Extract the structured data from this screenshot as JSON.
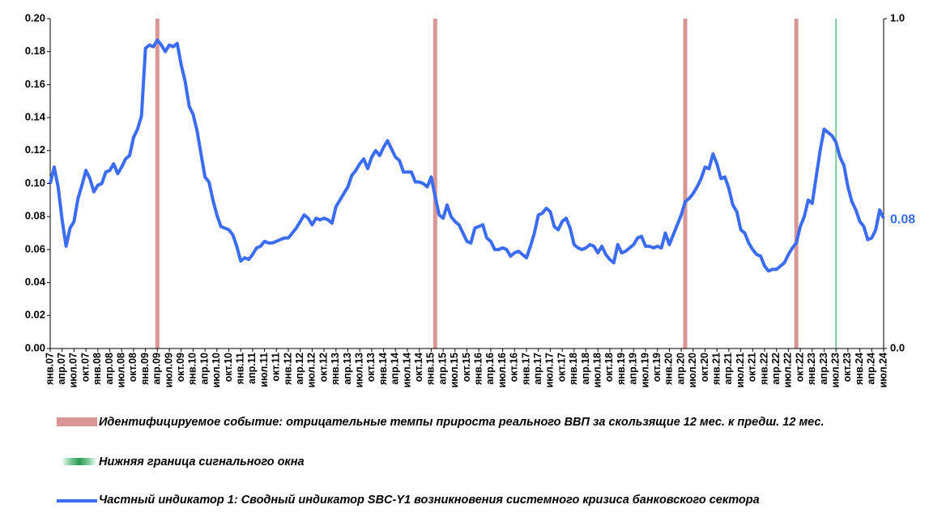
{
  "chart_data": {
    "type": "line",
    "categories": [
      "янв.07",
      null,
      null,
      "апр.07",
      null,
      null,
      "июл.07",
      null,
      null,
      "окт.07",
      null,
      null,
      "янв.08",
      null,
      null,
      "апр.08",
      null,
      null,
      "июл.08",
      null,
      null,
      "окт.08",
      null,
      null,
      "янв.09",
      null,
      null,
      "апр.09",
      null,
      null,
      "июл.09",
      null,
      null,
      "окт.09",
      null,
      null,
      "янв.10",
      null,
      null,
      "апр.10",
      null,
      null,
      "июл.10",
      null,
      null,
      "окт.10",
      null,
      null,
      "янв.11",
      null,
      null,
      "апр.11",
      null,
      null,
      "июл.11",
      null,
      null,
      "окт.11",
      null,
      null,
      "янв.12",
      null,
      null,
      "апр.12",
      null,
      null,
      "июл.12",
      null,
      null,
      "окт.12",
      null,
      null,
      "янв.13",
      null,
      null,
      "апр.13",
      null,
      null,
      "июл.13",
      null,
      null,
      "окт.13",
      null,
      null,
      "янв.14",
      null,
      null,
      "апр.14",
      null,
      null,
      "июл.14",
      null,
      null,
      "окт.14",
      null,
      null,
      "янв.15",
      null,
      null,
      "апр.15",
      null,
      null,
      "июл.15",
      null,
      null,
      "окт.15",
      null,
      null,
      "янв.16",
      null,
      null,
      "апр.16",
      null,
      null,
      "июл.16",
      null,
      null,
      "окт.16",
      null,
      null,
      "янв.17",
      null,
      null,
      "апр.17",
      null,
      null,
      "июл.17",
      null,
      null,
      "окт.17",
      null,
      null,
      "янв.18",
      null,
      null,
      "апр.18",
      null,
      null,
      "июл.18",
      null,
      null,
      "окт.18",
      null,
      null,
      "янв.19",
      null,
      null,
      "апр.19",
      null,
      null,
      "июл.19",
      null,
      null,
      "окт.19",
      null,
      null,
      "янв.20",
      null,
      null,
      "апр.20",
      null,
      null,
      "июл.20",
      null,
      null,
      "окт.20",
      null,
      null,
      "янв.21",
      null,
      null,
      "апр.21",
      null,
      null,
      "июл.21",
      null,
      null,
      "окт.21",
      null,
      null,
      "янв.22",
      null,
      null,
      "апр.22",
      null,
      null,
      "июл.22",
      null,
      null,
      "окт.22",
      null,
      null,
      "янв.23",
      null,
      null,
      "апр.23",
      null,
      null,
      "июл.23",
      null,
      null,
      "окт.23",
      null,
      null,
      "янв.24",
      null,
      null,
      "апр.24",
      null,
      null,
      "июл.24"
    ],
    "series": [
      {
        "name": "Идентифицируемое событие: отрицательные темпы прироста реального ВВП за скользящие 12 мес. к предш. 12 мес.",
        "color": "#d99694",
        "kind": "bar",
        "axis": "y2",
        "values": [
          null,
          null,
          null,
          null,
          null,
          null,
          null,
          null,
          null,
          null,
          null,
          null,
          null,
          null,
          null,
          null,
          null,
          null,
          null,
          null,
          null,
          null,
          null,
          null,
          null,
          null,
          null,
          1,
          null,
          null,
          null,
          null,
          null,
          null,
          null,
          null,
          null,
          null,
          null,
          null,
          null,
          null,
          null,
          null,
          null,
          null,
          null,
          null,
          null,
          null,
          null,
          null,
          null,
          null,
          null,
          null,
          null,
          null,
          null,
          null,
          null,
          null,
          null,
          null,
          null,
          null,
          null,
          null,
          null,
          null,
          null,
          null,
          null,
          null,
          null,
          null,
          null,
          null,
          null,
          null,
          null,
          null,
          null,
          null,
          null,
          null,
          null,
          null,
          null,
          null,
          null,
          null,
          null,
          null,
          null,
          null,
          null,
          1,
          null,
          null,
          null,
          null,
          null,
          null,
          null,
          null,
          null,
          null,
          null,
          null,
          null,
          null,
          null,
          null,
          null,
          null,
          null,
          null,
          null,
          null,
          null,
          null,
          null,
          null,
          null,
          null,
          null,
          null,
          null,
          null,
          null,
          null,
          null,
          null,
          null,
          null,
          null,
          null,
          null,
          null,
          null,
          null,
          null,
          null,
          null,
          null,
          null,
          null,
          null,
          null,
          null,
          null,
          null,
          null,
          null,
          null,
          null,
          null,
          null,
          null,
          1,
          null,
          null,
          null,
          null,
          null,
          null,
          null,
          null,
          null,
          null,
          null,
          null,
          null,
          null,
          null,
          null,
          null,
          null,
          null,
          null,
          null,
          null,
          null,
          null,
          null,
          null,
          null,
          1,
          null,
          null,
          null,
          null,
          null,
          null,
          null,
          null,
          null,
          null,
          null,
          null,
          null,
          null,
          null,
          null,
          null,
          null,
          null,
          null,
          null,
          null
        ]
      },
      {
        "name": "Нижняя граница сигнального окна",
        "color": "#7ec99a",
        "kind": "bar",
        "axis": "y2",
        "values": [
          null,
          null,
          null,
          null,
          null,
          null,
          null,
          null,
          null,
          null,
          null,
          null,
          null,
          null,
          null,
          null,
          null,
          null,
          null,
          null,
          null,
          null,
          null,
          null,
          null,
          null,
          null,
          null,
          null,
          null,
          null,
          null,
          null,
          null,
          null,
          null,
          null,
          null,
          null,
          null,
          null,
          null,
          null,
          null,
          null,
          null,
          null,
          null,
          null,
          null,
          null,
          null,
          null,
          null,
          null,
          null,
          null,
          null,
          null,
          null,
          null,
          null,
          null,
          null,
          null,
          null,
          null,
          null,
          null,
          null,
          null,
          null,
          null,
          null,
          null,
          null,
          null,
          null,
          null,
          null,
          null,
          null,
          null,
          null,
          null,
          null,
          null,
          null,
          null,
          null,
          null,
          null,
          null,
          null,
          null,
          null,
          null,
          null,
          null,
          null,
          null,
          null,
          null,
          null,
          null,
          null,
          null,
          null,
          null,
          null,
          null,
          null,
          null,
          null,
          null,
          null,
          null,
          null,
          null,
          null,
          null,
          null,
          null,
          null,
          null,
          null,
          null,
          null,
          null,
          null,
          null,
          null,
          null,
          null,
          null,
          null,
          null,
          null,
          null,
          null,
          null,
          null,
          null,
          null,
          null,
          null,
          null,
          null,
          null,
          null,
          null,
          null,
          null,
          null,
          null,
          null,
          null,
          null,
          null,
          null,
          null,
          null,
          null,
          null,
          null,
          null,
          null,
          null,
          null,
          null,
          null,
          null,
          null,
          null,
          null,
          null,
          null,
          null,
          null,
          null,
          null,
          null,
          null,
          null,
          null,
          null,
          null,
          null,
          null,
          null,
          null,
          null,
          null,
          null,
          null,
          null,
          null,
          null,
          1,
          null,
          null,
          null,
          null,
          null,
          null,
          null,
          null,
          null,
          null,
          null,
          null
        ]
      },
      {
        "name": "Частный индикатор 1: Сводный индикатор SBC-Y1 возникновения системного кризиса банковского сектора",
        "color": "#3b6cf5",
        "kind": "line",
        "values": [
          0.1,
          0.11,
          0.098,
          0.078,
          0.062,
          0.073,
          0.077,
          0.091,
          0.099,
          0.108,
          0.103,
          0.095,
          0.099,
          0.1,
          0.107,
          0.108,
          0.112,
          0.106,
          0.11,
          0.115,
          0.117,
          0.128,
          0.133,
          0.141,
          0.182,
          0.184,
          0.183,
          0.187,
          0.184,
          0.18,
          0.184,
          0.183,
          0.185,
          0.172,
          0.162,
          0.147,
          0.142,
          0.132,
          0.118,
          0.104,
          0.101,
          0.09,
          0.081,
          0.074,
          0.073,
          0.072,
          0.069,
          0.062,
          0.053,
          0.055,
          0.054,
          0.057,
          0.061,
          0.062,
          0.065,
          0.064,
          0.064,
          0.065,
          0.066,
          0.067,
          0.067,
          0.07,
          0.073,
          0.077,
          0.081,
          0.079,
          0.075,
          0.079,
          0.078,
          0.079,
          0.078,
          0.076,
          0.086,
          0.09,
          0.094,
          0.098,
          0.105,
          0.108,
          0.112,
          0.115,
          0.109,
          0.116,
          0.12,
          0.117,
          0.122,
          0.126,
          0.121,
          0.116,
          0.114,
          0.107,
          0.107,
          0.107,
          0.101,
          0.101,
          0.1,
          0.098,
          0.104,
          0.092,
          0.081,
          0.079,
          0.087,
          0.08,
          0.077,
          0.075,
          0.07,
          0.065,
          0.064,
          0.073,
          0.074,
          0.075,
          0.067,
          0.065,
          0.06,
          0.06,
          0.061,
          0.06,
          0.056,
          0.058,
          0.059,
          0.057,
          0.055,
          0.062,
          0.07,
          0.081,
          0.082,
          0.085,
          0.083,
          0.074,
          0.072,
          0.077,
          0.079,
          0.073,
          0.063,
          0.061,
          0.06,
          0.061,
          0.063,
          0.062,
          0.058,
          0.062,
          0.057,
          0.054,
          0.052,
          0.063,
          0.058,
          0.059,
          0.061,
          0.063,
          0.067,
          0.068,
          0.062,
          0.062,
          0.061,
          0.062,
          0.061,
          0.07,
          0.063,
          0.069,
          0.075,
          0.081,
          0.089,
          0.091,
          0.094,
          0.098,
          0.103,
          0.11,
          0.109,
          0.118,
          0.112,
          0.103,
          0.104,
          0.097,
          0.087,
          0.083,
          0.072,
          0.07,
          0.064,
          0.06,
          0.057,
          0.056,
          0.05,
          0.047,
          0.048,
          0.048,
          0.05,
          0.052,
          0.057,
          0.061,
          0.064,
          0.074,
          0.08,
          0.09,
          0.088,
          0.104,
          0.12,
          0.133,
          0.131,
          0.129,
          0.125,
          0.116,
          0.111,
          0.098,
          0.089,
          0.084,
          0.077,
          0.074,
          0.066,
          0.067,
          0.072,
          0.084,
          0.079
        ],
        "value_labels": [
          null,
          null,
          null,
          null,
          null,
          null,
          null,
          null,
          null,
          null,
          null,
          null,
          null,
          null,
          null,
          null,
          null,
          null,
          null,
          null,
          null,
          null,
          null,
          null,
          null,
          null,
          null,
          null,
          null,
          null,
          null,
          null,
          null,
          null,
          null,
          null,
          null,
          null,
          null,
          null,
          null,
          null,
          null,
          null,
          null,
          null,
          null,
          null,
          null,
          null,
          null,
          null,
          null,
          null,
          null,
          null,
          null,
          null,
          null,
          null,
          null,
          null,
          null,
          null,
          null,
          null,
          null,
          null,
          null,
          null,
          null,
          null,
          null,
          null,
          null,
          null,
          null,
          null,
          null,
          null,
          null,
          null,
          null,
          null,
          null,
          null,
          null,
          null,
          null,
          null,
          null,
          null,
          null,
          null,
          null,
          null,
          null,
          null,
          null,
          null,
          null,
          null,
          null,
          null,
          null,
          null,
          null,
          null,
          null,
          null,
          null,
          null,
          null,
          null,
          null,
          null,
          null,
          null,
          null,
          null,
          null,
          null,
          null,
          null,
          null,
          null,
          null,
          null,
          null,
          null,
          null,
          null,
          null,
          null,
          null,
          null,
          null,
          null,
          null,
          null,
          null,
          null,
          null,
          null,
          null,
          null,
          null,
          null,
          null,
          null,
          null,
          null,
          null,
          null,
          null,
          null,
          null,
          null,
          null,
          null,
          null,
          null,
          null,
          null,
          null,
          null,
          null,
          null,
          null,
          null,
          null,
          null,
          null,
          null,
          null,
          null,
          null,
          null,
          null,
          null,
          null,
          null,
          null,
          null,
          null,
          null,
          null,
          null,
          null,
          null,
          null,
          null,
          null,
          null,
          null,
          null,
          null,
          null,
          null,
          null,
          null,
          null,
          null,
          null,
          null,
          null,
          null,
          null,
          null,
          null,
          "0.08"
        ]
      }
    ],
    "ylim": [
      0,
      0.2
    ],
    "yticks": [
      {
        "value": 0,
        "label": "0.00"
      },
      {
        "value": 0.02,
        "label": "0.02"
      },
      {
        "value": 0.04,
        "label": "0.04"
      },
      {
        "value": 0.06,
        "label": "0.06"
      },
      {
        "value": 0.08,
        "label": "0.08"
      },
      {
        "value": 0.1,
        "label": "0.10"
      },
      {
        "value": 0.12,
        "label": "0.12"
      },
      {
        "value": 0.14,
        "label": "0.14"
      },
      {
        "value": 0.16,
        "label": "0.16"
      },
      {
        "value": 0.18,
        "label": "0.18"
      },
      {
        "value": 0.2,
        "label": "0.20"
      }
    ],
    "y2lim": [
      0,
      1
    ],
    "y2ticks": [
      {
        "value": 0,
        "label": "0.0"
      },
      {
        "value": 1,
        "label": "1.0"
      }
    ],
    "grid": false,
    "legend": "bottom"
  }
}
